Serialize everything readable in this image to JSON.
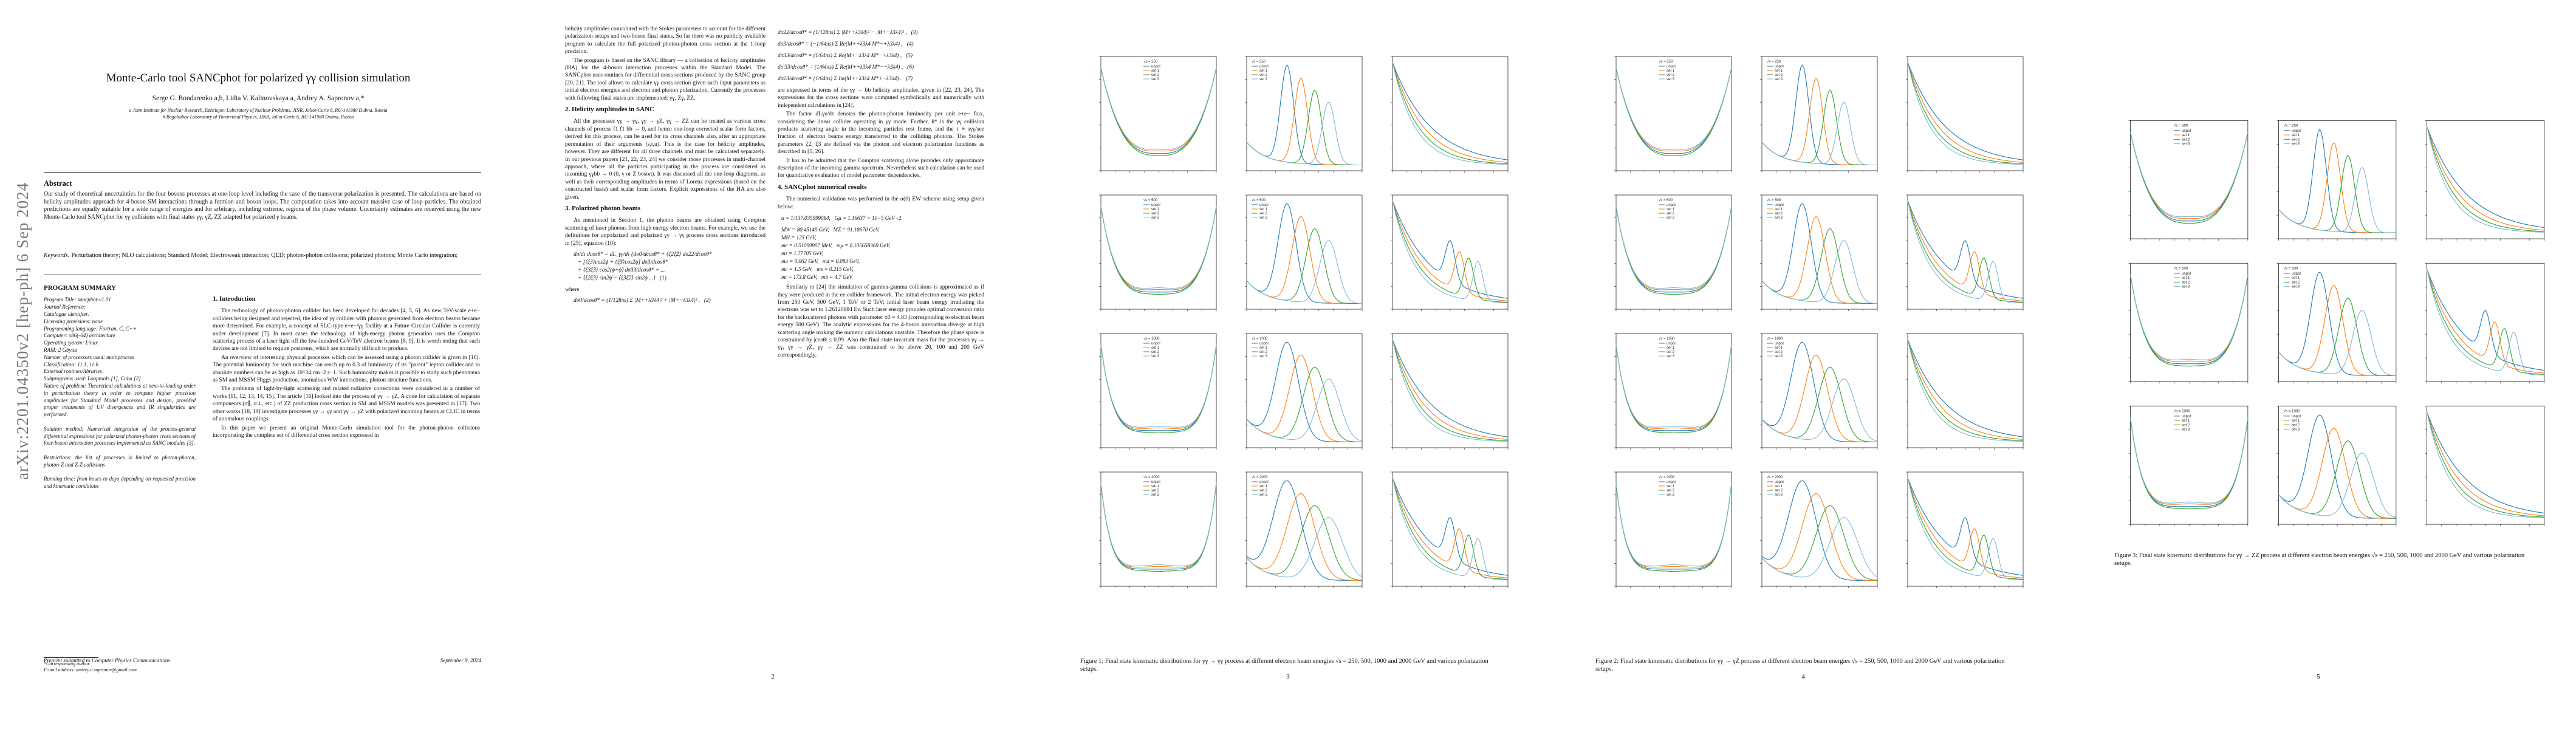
{
  "arxiv_stamp": "arXiv:2201.04350v2  [hep-ph]  6 Sep 2024",
  "paper": {
    "title": "Monte-Carlo tool SANCphot for polarized γγ collision simulation",
    "authors": "Serge G. Bondarenko a,b, Lidia V. Kalinovskaya a, Andrey A. Sapronov a,*",
    "affiliations": [
      "a Joint Institute for Nuclear Research, Dzhelepov Laboratory of Nuclear Problems, JINR, Joliot-Curie 6, RU-141980 Dubna, Russia",
      "b Bogoliubov Laboratory of Theoretical Physics, JINR, Joliot-Curie 6, RU-141980 Dubna, Russia"
    ],
    "abstract_heading": "Abstract",
    "abstract": "Our study of theoretical uncertainties for the four bosons processes at one-loop level including the case of the transverse polarization is presented. The calculations are based on helicity amplitudes approach for 4-boson SM interactions through a fermion and boson loops. The computation takes into account massive case of loop particles. The obtained predictions are equally suitable for a wide range of energies and for arbitrary, including extreme, regions of the phase volume. Uncertainty estimates are received using the new Monte-Carlo tool SANCphot for γγ collisions with final states γγ, γZ, ZZ adapted for polarized γ beams.",
    "keywords_label": "Keywords:",
    "keywords": "Perturbation theory; NLO calculations; Standard Model; Electroweak interaction; QED; photon-photon collisions; polarized photons; Monte Carlo integration;",
    "program_summary_heading": "PROGRAM SUMMARY",
    "program_summary": "Program Title: sancphot-v1.01\nJournal Reference:\nCatalogue identifier:\nLicensing provisions: none\nProgramming language: Fortran, C, C++\nComputer: x86(-64) architecture\nOperating system: Linux\nRAM: 2 Gbytes\nNumber of processors used: multiprocess\nClassification: 11.1, 11.6\nExternal routines/libraries:\nSubprograms used: Looptools [1], Cuba [2]\nNature of problem: Theoretical calculations at next-to-leading order in perturbation theory in order to compute higher precision amplitudes for Standard Model processes and design, provided proper treatments of UV divergences and IR singularities are performed.\n\nSolution method: Numerical integration of the process-general differential expressions for polarized photon-photon cross sections of four-boson interaction processes implemented as SANC modules [3].\n\nRestrictions: the list of processes is limited to photon-photon, photon-Z and Z-Z collisions\n\nRunning time: from hours to days depending on requested precision and kinematic conditions",
    "footnote": "*Corresponding author.\nE-mail address: andrey.a.sapronov@gmail.com",
    "preprint": "Preprint submitted to Computer Physics Communications",
    "date": "September 9, 2024",
    "intro_heading": "1. Introduction",
    "intro": [
      "The technology of photon-photon collider has been developed for decades [4, 5, 6]. As new TeV-scale e+e− colliders being designed and rejected, the idea of γγ collider with photons generated from electron beams became more determined. For example, a concept of SLC-type e+e−/γγ facility at a Future Circular Collider is currently under development [7]. In most cases the technology of high-energy photon generation uses the Compton scattering process of a laser light off the few-hundred GeV/TeV electron beams [8, 9]. It is worth noting that such devices are not limited to require positrons, which are normally difficult to produce.",
      "An overview of interesting physical processes which can be assessed using a photon collider is given in [10]. The potential luminosity for such machine can reach up to 0.3 of luminosity of its \"parent\" lepton collider and in absolute numbers can be as high as 10^34 cm−2 s−1. Such luminosity makes it possible to study such phenomena as SM and MSSM Higgs production, anomalous WW interactions, photon structure functions.",
      "The problems of light-by-light scattering and related radiative corrections were considered in a number of works [11, 12, 13, 14, 15]. The article [16] looked into the process of γγ → γZ. A code for calculation of separate components (σ∥, σ⊥, etc.) of ZZ production cross section in SM and MSSM models was presented in [17]. Two other works [18, 19] investigate processes γγ → γγ and γγ → γZ with polarized incoming beams at CLIC in terms of anomalous couplings.",
      "In this paper we present an original Monte-Carlo simulation tool for the photon-photon collisions incorporating the complete set of differential cross section expressed in"
    ],
    "page2": {
      "col1_top": "helicity amplitudes convoluted with the Stokes parameters to account for the different polarization setups and two-boson final states. So far there was no publicly available program to calculate the full polarized photon-photon cross section at the 1-loop precision.",
      "col1_p2": "The program is based on the SANC library — a collection of helicity amplitudes (HA) for the 4-boson interaction processes within the Standard Model. The SANCphot uses routines for differential cross sections produced by the SANC group [20, 21]. The tool allows to calculate γγ cross section given such input parameters as initial electron energies and electron and photon polarization. Currently the processes with following final states are implemented: γγ, Zγ, ZZ.",
      "sec2_heading": "2. Helicity amplitudes in SANC",
      "sec2": "All the processes γγ → γγ, γγ → γZ, γγ → ZZ can be treated as various cross channels of process f1 f̄1 bb → 0, and hence one-loop corrected scalar form factors, derived for this process, can be used for its cross channels also, after an appropriate permutation of their arguments (s,t,u). This is the case for helicity amplitudes, however. They are different for all three channels and must be calculated separately. In our previous papers [21, 22, 23, 24] we consider those processes in multi-channel approach, where all the particles participating in the process are considered as incoming γγbb → 0 (0, γ or Z boson). It was discussed all the one-loop diagrams, as well as their corresponding amplitudes in terms of Lorenz expressions (based on the constructed basis) and scalar form factors. Explicit expressions of the HA are also given.",
      "sec3_heading": "3. Polarized photon beams",
      "sec3": "As mentioned in Section 1, the photon beams are obtained using Compton scattering of laser photons from high energy electron beams. For example, we use the definitions for unpolarized and polarized γγ → γγ process cross sections introduced in [25], equation (10):",
      "eq_main": "dσ/dτ dcosθ* = dL_γγ/dτ {dσ0/dcosθ* + ⟨ξ2ξ̃2⟩ dσ22/dcosθ*\n   + [⟨ξ3⟩cos2ϕ + ⟨ξ̃3⟩cos2ϕ̃] dσ3/dcosθ*\n   + ⟨ξ3ξ̃3⟩ cos2(ϕ+ϕ̃) dσ33/dcosθ* + ...\n   + ⟨ξ2ξ̃3⟩ sin2ϕ̃ − ⟨ξ3ξ̃2⟩ sin2ϕ ...}   (1)",
      "where": "where",
      "eq2": "dσ0/dcosθ* = (1/128πs) Σ |M++λ3λ4|² + |M+−λ3λ4|² ,   (2)",
      "eqs_right": [
        "dσ22/dcosθ* = (1/128πs) Σ |M++λ3λ4|² − |M+−λ3λ4|² ,   (3)",
        "dσ3/dcosθ* = (−1/64πs) Σ Re(M++λ3λ4 M*−+λ3λ4) ,   (4)",
        "dσ33/dcosθ* = (1/64πs) Σ Re(M+−λ3λ4 M*−+λ3λ4) ,   (5)",
        "dσ'33/dcosθ* = (1/64πs) Σ Re(M++λ3λ4 M*−−λ3λ4) ,   (6)",
        "dσ23/dcosθ* = (1/64πs) Σ Im(M++λ3λ4 M*+−λ3λ4) .   (7)"
      ],
      "col2_p1": "are expressed in terms of the γγ → bb helicity amplitudes, given in [22, 23, 24]. The expressions for the cross sections were computed symbolically and numerically with independent calculations in [24].",
      "col2_p2": "The factor dLγγ/dτ denotes the photon-photon luminosity per unit e+e− flux, considering the linear collider operating in γγ mode. Further, θ* is the γγ collision products scattering angle in the incoming particles rest frame, and the τ ≡ sγγ/see fraction of electron beams energy transferred to the colliding photons. The Stokes parameters ξ2, ξ3 are defined via the photon and electron polarization functions as described in [5, 26].",
      "col2_p3": "It has to be admitted that the Compton scattering alone provides only approximate description of the incoming gamma spectrum. Nevertheless such calculation can be used for quantitative evaluation of model parameter dependencies.",
      "sec4_heading": "4. SANCphot numerical results",
      "sec4": "The numerical validation was performed in the α(0) EW scheme using setup given below:",
      "params": [
        "α = 1/137.035999084,   Gμ = 1.16637 × 10−5 GeV−2,",
        "MW = 80.45149 GeV,   MZ = 91.18670 GeV,",
        "MH = 125 GeV,",
        "me = 0.51099907 MeV,   mμ = 0.105658369 GeV,",
        "mτ = 1.77705 GeV,",
        "mu = 0.062 GeV,   md = 0.083 GeV,",
        "mc = 1.5 GeV,   ms = 0.215 GeV,",
        "mt = 173.8 GeV,   mb = 4.7 GeV."
      ],
      "col2_p4": "Similarly to [24] the simulation of gamma-gamma collisions is approximated as if they were produced in the ee collider framework. The initial electron energy was picked from 250 GeV, 500 GeV, 1 TeV or 2 TeV; initial laser beam energy irradiating the electrons was set to 1.26120984 Ev. Such laser energy provides optimal conversion ratio for the backscattered photons with parameter x0 = 4.83 (corresponding to electron beam energy 500 GeV). The analytic expressions for the 4-boson interaction diverge at high scattering angle making the numeric calculations unstable. Therefore the phase space is constrained by |cosθ| ≤ 0.99. Also the final state invariant mass for the processes γγ → γγ, γγ → γZ, γγ → ZZ was constrained to be above 20, 100 and 200 GeV correspondingly."
    },
    "page_numbers": [
      "2",
      "3",
      "4",
      "5"
    ]
  },
  "figures": {
    "fig1_caption": "Figure 1: Final state kinematic distributions for γγ → γγ process at different electron beam energies √s = 250, 500, 1000 and 2000 GeV and various polarization setups.",
    "fig2_caption": "Figure 2: Final state kinematic distributions for γγ → γZ process at different electron beam energies √s = 250, 500, 1000 and 2000 GeV and various polarization setups.",
    "fig3_caption": "Figure 3: Final state kinematic distributions for γγ → ZZ process at different electron beam energies √s = 250, 500, 1000 and 2000 GeV and various polarization setups.",
    "legend": [
      "unpol",
      "set 1",
      "set 2",
      "set 3"
    ],
    "series_colors": {
      "unpol": "#1f77b4",
      "set 1": "#ff7f0e",
      "set 2": "#2ca02c",
      "set 3": "#7fb7d9"
    },
    "energy_labels": [
      "√s = 250",
      "√s = 500",
      "√s = 1000",
      "√s = 2000"
    ]
  },
  "chart_data": [
    {
      "type": "line",
      "figure": "Figure 1",
      "panel_kinds": [
        "cosθ",
        "Mγγ",
        "pT"
      ],
      "rows": 4,
      "xlabel_cos": "cosθ",
      "ylim_cos": [
        -1,
        1
      ],
      "series": [
        {
          "name": "unpol"
        },
        {
          "name": "set 1"
        },
        {
          "name": "set 2"
        },
        {
          "name": "set 3"
        }
      ]
    },
    {
      "type": "line",
      "figure": "Figure 2",
      "panel_kinds": [
        "cosθ",
        "MγZ",
        "pT"
      ],
      "rows": 4,
      "series": [
        {
          "name": "unpol"
        },
        {
          "name": "set 1"
        },
        {
          "name": "set 2"
        },
        {
          "name": "set 3"
        }
      ]
    },
    {
      "type": "line",
      "figure": "Figure 3",
      "panel_kinds": [
        "cosθ",
        "MZZ",
        "pT"
      ],
      "rows": 3,
      "series": [
        {
          "name": "unpol"
        },
        {
          "name": "set 1"
        },
        {
          "name": "set 2"
        },
        {
          "name": "set 3"
        }
      ]
    }
  ]
}
